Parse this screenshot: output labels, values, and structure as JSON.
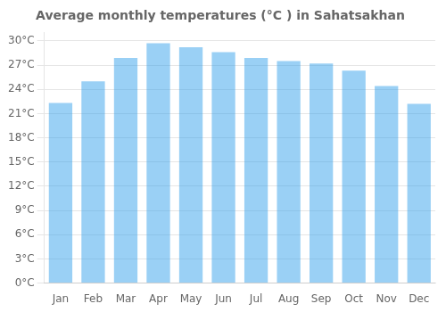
{
  "chart_data": {
    "type": "bar",
    "title": "Average monthly temperatures (°C ) in Sahatsakhan",
    "categories": [
      "Jan",
      "Feb",
      "Mar",
      "Apr",
      "May",
      "Jun",
      "Jul",
      "Aug",
      "Sep",
      "Oct",
      "Nov",
      "Dec"
    ],
    "values": [
      22.3,
      25.0,
      27.9,
      29.7,
      29.2,
      28.6,
      27.9,
      27.5,
      27.2,
      26.3,
      24.4,
      22.2
    ],
    "ylim": [
      0,
      31
    ],
    "yticks": [
      {
        "value": 0,
        "label": "0°C"
      },
      {
        "value": 3,
        "label": "3°C"
      },
      {
        "value": 6,
        "label": "6°C"
      },
      {
        "value": 9,
        "label": "9°C"
      },
      {
        "value": 12,
        "label": "12°C"
      },
      {
        "value": 15,
        "label": "15°C"
      },
      {
        "value": 18,
        "label": "18°C"
      },
      {
        "value": 21,
        "label": "21°C"
      },
      {
        "value": 24,
        "label": "24°C"
      },
      {
        "value": 27,
        "label": "27°C"
      },
      {
        "value": 30,
        "label": "30°C"
      }
    ],
    "grid": true
  }
}
